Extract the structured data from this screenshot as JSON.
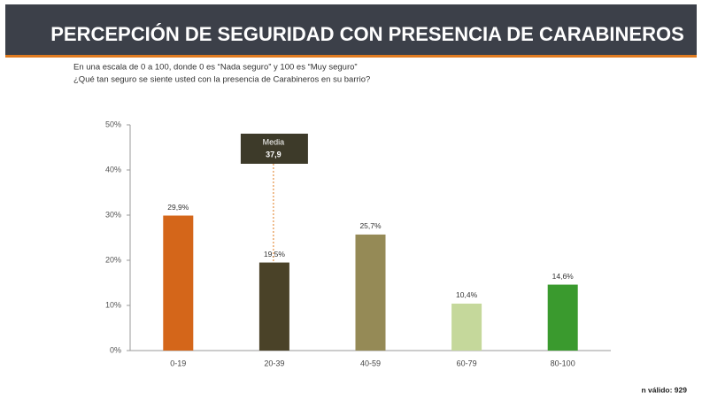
{
  "header": {
    "title": "PERCEPCIÓN DE SEGURIDAD CON PRESENCIA DE CARABINEROS"
  },
  "chart_data": {
    "type": "bar",
    "subtitle": [
      "En una escala de 0 a 100, donde 0 es “Nada seguro” y 100 es “Muy seguro”",
      "¿Qué tan seguro se siente usted con la presencia de Carabineros en su barrio?"
    ],
    "categories": [
      "0-19",
      "20-39",
      "40-59",
      "60-79",
      "80-100"
    ],
    "values": [
      29.9,
      19.5,
      25.7,
      10.4,
      14.6
    ],
    "value_labels": [
      "29,9%",
      "19,5%",
      "25,7%",
      "10,4%",
      "14,6%"
    ],
    "colors": [
      "#d4661a",
      "#4a4228",
      "#958a56",
      "#c5d89b",
      "#3a9a2e"
    ],
    "ylim": [
      0,
      50
    ],
    "yticks": [
      {
        "value": 0,
        "label": "0%"
      },
      {
        "value": 10,
        "label": "10%"
      },
      {
        "value": 20,
        "label": "20%"
      },
      {
        "value": 30,
        "label": "30%"
      },
      {
        "value": 40,
        "label": "40%"
      },
      {
        "value": 50,
        "label": "50%"
      }
    ],
    "grid": false,
    "annotation": {
      "title": "Media",
      "label": "37,9",
      "value": 37.9
    },
    "footnote": "n válido: 929"
  }
}
